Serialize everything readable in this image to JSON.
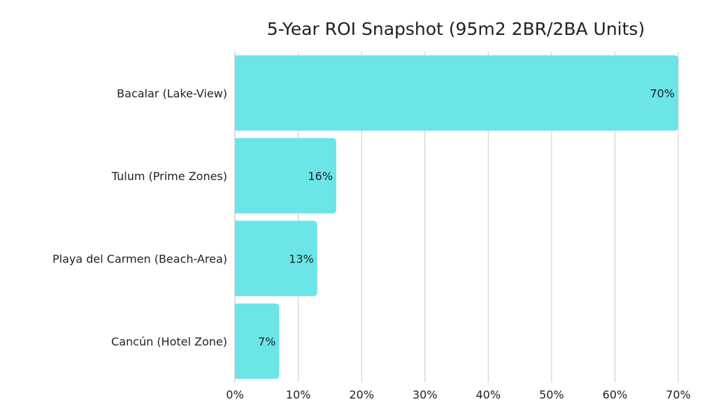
{
  "chart_data": {
    "type": "bar",
    "orientation": "horizontal",
    "title": "5-Year ROI Snapshot (95m2 2BR/2BA Units)",
    "xlabel": "",
    "ylabel": "",
    "categories": [
      "Bacalar (Lake-View)",
      "Tulum (Prime Zones)",
      "Playa del Carmen (Beach-Area)",
      "Cancún (Hotel Zone)"
    ],
    "values": [
      70,
      16,
      13,
      7
    ],
    "data_labels": [
      "70%",
      "16%",
      "13%",
      "7%"
    ],
    "xlim": [
      0,
      70
    ],
    "xticks": [
      0,
      10,
      20,
      30,
      40,
      50,
      60,
      70
    ],
    "xtick_labels": [
      "0%",
      "10%",
      "20%",
      "30%",
      "40%",
      "50%",
      "60%",
      "70%"
    ],
    "grid": "vertical",
    "bar_color": "#6BE5E7",
    "grid_color": "#cccccc"
  }
}
